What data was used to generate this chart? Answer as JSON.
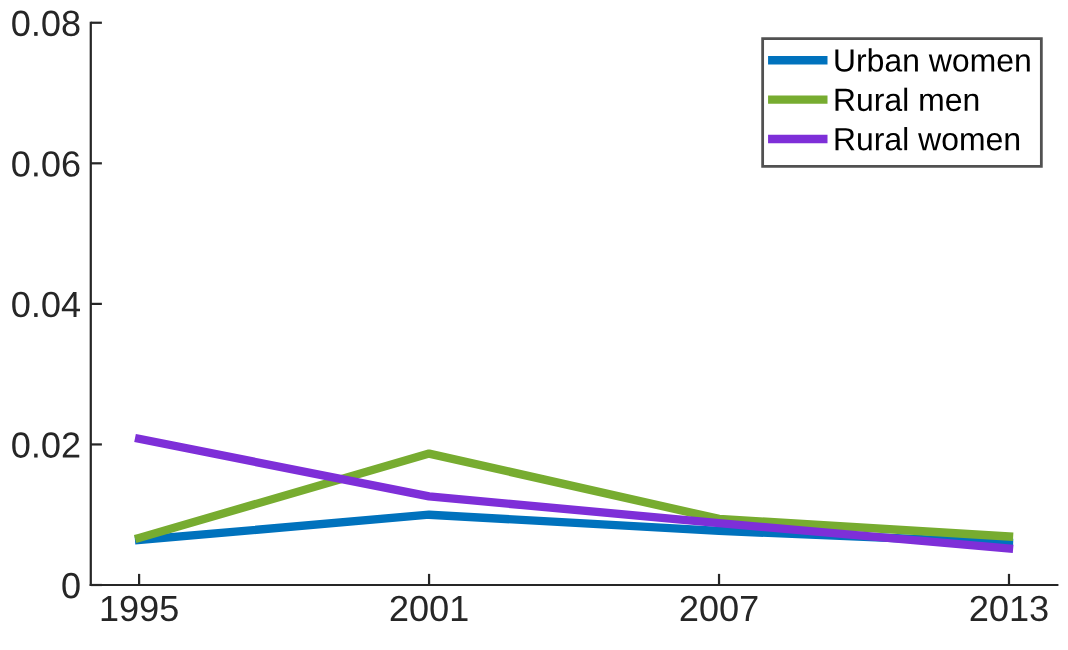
{
  "chart_data": {
    "type": "line",
    "x": [
      1995,
      2001,
      2007,
      2013
    ],
    "series": [
      {
        "name": "Urban women",
        "color": "#0072bd",
        "values": [
          0.0064,
          0.01,
          0.0077,
          0.006
        ]
      },
      {
        "name": "Rural men",
        "color": "#77ac30",
        "values": [
          0.0067,
          0.0187,
          0.0094,
          0.0069
        ]
      },
      {
        "name": "Rural women",
        "color": "#7e2fd8",
        "values": [
          0.0208,
          0.0126,
          0.0088,
          0.0052
        ]
      }
    ],
    "xlim": [
      1994,
      2014
    ],
    "xticks": [
      1995,
      2001,
      2007,
      2013
    ],
    "ylim": [
      0,
      0.08
    ],
    "yticks": [
      {
        "value": 0,
        "label": "0"
      },
      {
        "value": 0.02,
        "label": "0.02"
      },
      {
        "value": 0.04,
        "label": "0.04"
      },
      {
        "value": 0.06,
        "label": "0.06"
      },
      {
        "value": 0.08,
        "label": "0.08"
      }
    ],
    "grid": false,
    "legend": "top right",
    "line_style": "solid",
    "marker": "none"
  }
}
